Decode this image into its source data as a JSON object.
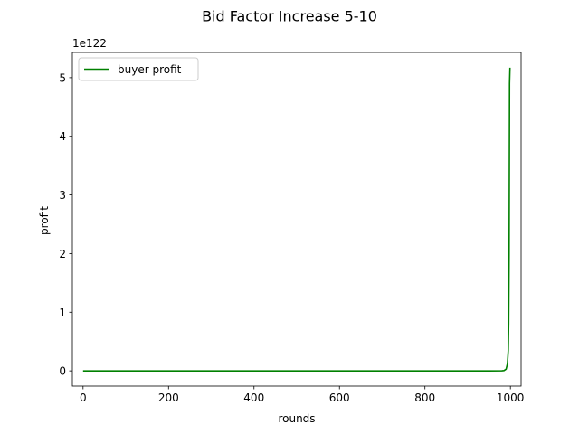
{
  "chart_data": {
    "type": "line",
    "title": "Bid Factor Increase 5-10",
    "xlabel": "rounds",
    "ylabel": "profit",
    "y_offset_text": "1e122",
    "xlim": [
      -25,
      1025
    ],
    "ylim": [
      -0.26,
      5.43
    ],
    "x_ticks": [
      0,
      200,
      400,
      600,
      800,
      1000
    ],
    "y_ticks": [
      0,
      1,
      2,
      3,
      4,
      5
    ],
    "grid": false,
    "legend_position": "upper-left",
    "series": [
      {
        "name": "buyer profit",
        "color": "#008000",
        "x": [
          0,
          100,
          200,
          300,
          400,
          500,
          600,
          700,
          800,
          900,
          950,
          980,
          985,
          990,
          993,
          995,
          996,
          997,
          998,
          999
        ],
        "y": [
          0,
          0,
          0,
          0,
          0,
          0,
          0,
          0,
          0,
          0,
          0,
          0.001,
          0.005,
          0.03,
          0.12,
          0.35,
          0.8,
          2.0,
          4.9,
          5.17
        ]
      }
    ]
  }
}
